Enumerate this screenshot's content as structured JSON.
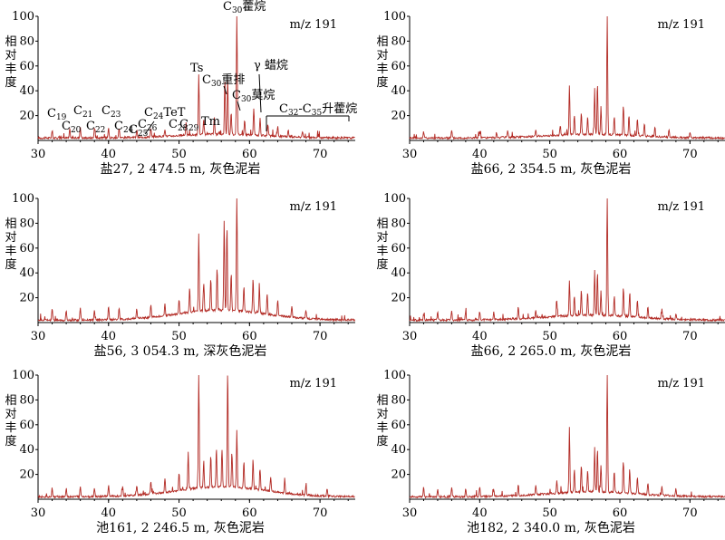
{
  "figure": {
    "panels": [
      {
        "caption": "盐27, 2 474.5 m, 灰色泥岩",
        "mz": "m/z 191",
        "ylabel": [
          "相",
          "对",
          "丰",
          "度"
        ]
      },
      {
        "caption": "盐66, 2 354.5 m, 灰色泥岩",
        "mz": "m/z 191",
        "ylabel": [
          "相",
          "对",
          "丰",
          "度"
        ]
      },
      {
        "caption": "盐56, 3 054.3 m, 深灰色泥岩",
        "mz": "m/z 191",
        "ylabel": [
          "相",
          "对",
          "丰",
          "度"
        ]
      },
      {
        "caption": "盐66, 2 265.0 m, 灰色泥岩",
        "mz": "m/z 191",
        "ylabel": [
          "相",
          "对",
          "丰",
          "度"
        ]
      },
      {
        "caption": "池161, 2 246.5 m, 灰色泥岩",
        "mz": "m/z 191",
        "ylabel": [
          "相",
          "对",
          "丰",
          "度"
        ]
      },
      {
        "caption": "池182, 2 340.0 m, 灰色泥岩",
        "mz": "m/z 191",
        "ylabel": [
          "相",
          "对",
          "丰",
          "度"
        ]
      }
    ],
    "annotations": {
      "C19": "C19",
      "C20": "C20",
      "C21": "C21",
      "C22": "C22",
      "C23": "C23",
      "C24": "C24",
      "C25": "C25",
      "C26": "C26",
      "C24TeT": "C24TeT",
      "Ts": "Ts",
      "Tm": "Tm",
      "C28": "C28",
      "C29": "C29",
      "C30_hop": "C30藿烷",
      "C30_rear": "C30重排",
      "C30_mor": "C30莫烷",
      "gam": "γ 蜡烷",
      "homo": "C32-C35升藿烷"
    }
  },
  "chart_data": [
    {
      "type": "line",
      "title": "m/z 191",
      "xlim": [
        30,
        75
      ],
      "ylim": [
        0,
        100
      ],
      "xticks": [
        30,
        40,
        50,
        60,
        70
      ],
      "yticks": [
        20,
        40,
        60,
        80,
        100
      ],
      "peaks": [
        [
          32,
          6
        ],
        [
          34.5,
          7
        ],
        [
          36,
          9
        ],
        [
          38,
          8
        ],
        [
          40,
          9
        ],
        [
          41.5,
          8
        ],
        [
          44,
          6
        ],
        [
          46,
          7
        ],
        [
          48,
          6
        ],
        [
          51,
          11
        ],
        [
          52.8,
          48
        ],
        [
          53.5,
          12
        ],
        [
          55,
          14
        ],
        [
          56.5,
          44
        ],
        [
          56.9,
          46
        ],
        [
          57.4,
          18
        ],
        [
          58.2,
          100
        ],
        [
          59.3,
          12
        ],
        [
          60.6,
          22
        ],
        [
          61.5,
          14
        ],
        [
          62.6,
          10
        ],
        [
          64,
          8
        ],
        [
          65.5,
          6
        ],
        [
          67.5,
          5
        ]
      ],
      "baseline_hump": 3
    },
    {
      "type": "line",
      "title": "m/z 191",
      "xlim": [
        30,
        75
      ],
      "ylim": [
        0,
        100
      ],
      "xticks": [
        30,
        40,
        50,
        60,
        70
      ],
      "yticks": [
        20,
        40,
        60,
        80,
        100
      ],
      "peaks": [
        [
          32,
          5
        ],
        [
          36,
          6
        ],
        [
          40,
          5
        ],
        [
          44,
          5
        ],
        [
          48,
          5
        ],
        [
          51.5,
          8
        ],
        [
          52.8,
          40
        ],
        [
          53.5,
          15
        ],
        [
          54.5,
          18
        ],
        [
          55.4,
          14
        ],
        [
          56.4,
          35
        ],
        [
          56.8,
          41
        ],
        [
          57.3,
          22
        ],
        [
          58.2,
          98
        ],
        [
          59.2,
          14
        ],
        [
          60.5,
          24
        ],
        [
          61.3,
          16
        ],
        [
          62.5,
          14
        ],
        [
          63.5,
          10
        ],
        [
          65,
          8
        ],
        [
          67,
          6
        ],
        [
          70,
          4
        ]
      ],
      "baseline_hump": 3
    },
    {
      "type": "line",
      "title": "m/z 191",
      "xlim": [
        30,
        75
      ],
      "ylim": [
        0,
        100
      ],
      "xticks": [
        30,
        40,
        50,
        60,
        70
      ],
      "yticks": [
        20,
        40,
        60,
        80,
        100
      ],
      "peaks": [
        [
          32,
          9
        ],
        [
          34,
          8
        ],
        [
          36,
          10
        ],
        [
          38,
          8
        ],
        [
          40,
          11
        ],
        [
          41.5,
          9
        ],
        [
          44,
          8
        ],
        [
          46,
          10
        ],
        [
          48,
          9
        ],
        [
          50,
          12
        ],
        [
          51.5,
          20
        ],
        [
          52.8,
          62
        ],
        [
          53.5,
          22
        ],
        [
          54.5,
          26
        ],
        [
          55.4,
          34
        ],
        [
          56.4,
          72
        ],
        [
          56.8,
          68
        ],
        [
          57.4,
          30
        ],
        [
          58.2,
          98
        ],
        [
          59.2,
          20
        ],
        [
          60.5,
          28
        ],
        [
          61.4,
          22
        ],
        [
          62.5,
          16
        ],
        [
          64,
          12
        ],
        [
          66,
          9
        ],
        [
          68,
          7
        ]
      ],
      "baseline_hump": 8
    },
    {
      "type": "line",
      "title": "m/z 191",
      "xlim": [
        30,
        75
      ],
      "ylim": [
        0,
        100
      ],
      "xticks": [
        30,
        40,
        50,
        60,
        70
      ],
      "yticks": [
        20,
        40,
        60,
        80,
        100
      ],
      "peaks": [
        [
          32,
          5
        ],
        [
          34,
          6
        ],
        [
          36,
          8
        ],
        [
          38,
          6
        ],
        [
          40,
          7
        ],
        [
          42,
          6
        ],
        [
          45.5,
          9
        ],
        [
          48,
          6
        ],
        [
          51,
          10
        ],
        [
          52.8,
          28
        ],
        [
          53.5,
          16
        ],
        [
          54.5,
          20
        ],
        [
          55.4,
          18
        ],
        [
          56.4,
          36
        ],
        [
          56.8,
          34
        ],
        [
          57.3,
          20
        ],
        [
          58.2,
          100
        ],
        [
          59.2,
          16
        ],
        [
          60.5,
          24
        ],
        [
          61.4,
          18
        ],
        [
          62.5,
          14
        ],
        [
          64,
          9
        ],
        [
          66,
          7
        ],
        [
          68,
          5
        ]
      ],
      "baseline_hump": 4
    },
    {
      "type": "line",
      "title": "m/z 191",
      "xlim": [
        30,
        75
      ],
      "ylim": [
        0,
        100
      ],
      "xticks": [
        30,
        40,
        50,
        60,
        70
      ],
      "yticks": [
        20,
        40,
        60,
        80,
        100
      ],
      "peaks": [
        [
          32,
          7
        ],
        [
          34,
          7
        ],
        [
          36,
          8
        ],
        [
          38,
          7
        ],
        [
          40,
          9
        ],
        [
          42,
          8
        ],
        [
          44,
          8
        ],
        [
          46,
          10
        ],
        [
          48,
          11
        ],
        [
          50,
          14
        ],
        [
          51.3,
          30
        ],
        [
          52.8,
          96
        ],
        [
          53.5,
          22
        ],
        [
          54.5,
          26
        ],
        [
          55.3,
          32
        ],
        [
          56.1,
          30
        ],
        [
          56.9,
          95
        ],
        [
          57.5,
          28
        ],
        [
          58.2,
          46
        ],
        [
          59.2,
          22
        ],
        [
          60.5,
          24
        ],
        [
          61.5,
          16
        ],
        [
          63,
          12
        ],
        [
          65,
          10
        ],
        [
          68,
          8
        ],
        [
          71,
          6
        ]
      ],
      "baseline_hump": 8
    },
    {
      "type": "line",
      "title": "m/z 191",
      "xlim": [
        30,
        75
      ],
      "ylim": [
        0,
        100
      ],
      "xticks": [
        30,
        40,
        50,
        60,
        70
      ],
      "yticks": [
        20,
        40,
        60,
        80,
        100
      ],
      "peaks": [
        [
          32,
          8
        ],
        [
          34,
          6
        ],
        [
          36,
          7
        ],
        [
          38,
          6
        ],
        [
          40,
          7
        ],
        [
          42,
          6
        ],
        [
          45.5,
          9
        ],
        [
          48,
          7
        ],
        [
          51,
          10
        ],
        [
          52.8,
          52
        ],
        [
          53.5,
          18
        ],
        [
          54.5,
          22
        ],
        [
          55.4,
          18
        ],
        [
          56.4,
          36
        ],
        [
          56.8,
          34
        ],
        [
          57.3,
          22
        ],
        [
          58.2,
          100
        ],
        [
          59.2,
          16
        ],
        [
          60.5,
          26
        ],
        [
          61.4,
          20
        ],
        [
          62.5,
          14
        ],
        [
          64,
          10
        ],
        [
          66,
          7
        ],
        [
          68,
          6
        ]
      ],
      "baseline_hump": 4
    }
  ]
}
